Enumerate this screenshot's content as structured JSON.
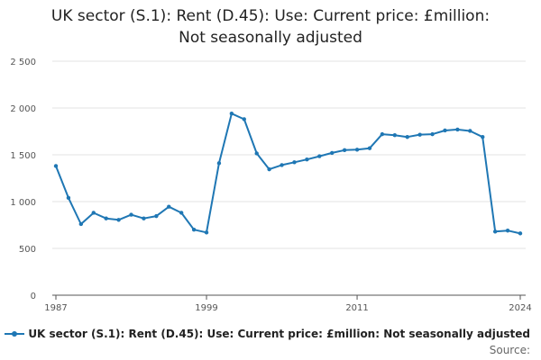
{
  "colors": {
    "series": "#1f77b4",
    "grid": "#e3e3e3",
    "axis": "#555555"
  },
  "source_label": "Source:",
  "chart_data": {
    "type": "line",
    "title_lines": [
      "UK sector (S.1): Rent (D.45): Use: Current price: £million:",
      "Not seasonally adjusted"
    ],
    "xlabel": "",
    "ylabel": "",
    "x_ticks": [
      1987,
      1999,
      2011,
      2024
    ],
    "y_ticks": [
      0,
      500,
      1000,
      1500,
      2000,
      2500
    ],
    "y_tick_labels": [
      "0",
      "500",
      "1 000",
      "1 500",
      "2 000",
      "2 500"
    ],
    "xlim": [
      1987,
      2024
    ],
    "ylim": [
      0,
      2500
    ],
    "grid": true,
    "legend": "bottom",
    "series": [
      {
        "name": "UK sector (S.1): Rent (D.45): Use: Current price: £million: Not seasonally adjusted",
        "x": [
          1987,
          1988,
          1989,
          1990,
          1991,
          1992,
          1993,
          1994,
          1995,
          1996,
          1997,
          1998,
          1999,
          2000,
          2001,
          2002,
          2003,
          2004,
          2005,
          2006,
          2007,
          2008,
          2009,
          2010,
          2011,
          2012,
          2013,
          2014,
          2015,
          2016,
          2017,
          2018,
          2019,
          2020,
          2021,
          2022,
          2023,
          2024
        ],
        "values": [
          1380,
          1040,
          760,
          880,
          820,
          805,
          860,
          820,
          845,
          945,
          880,
          700,
          670,
          1410,
          1940,
          1880,
          1515,
          1345,
          1390,
          1420,
          1450,
          1485,
          1520,
          1550,
          1555,
          1570,
          1720,
          1710,
          1690,
          1715,
          1720,
          1760,
          1770,
          1755,
          1690,
          680,
          690,
          660
        ]
      }
    ]
  }
}
